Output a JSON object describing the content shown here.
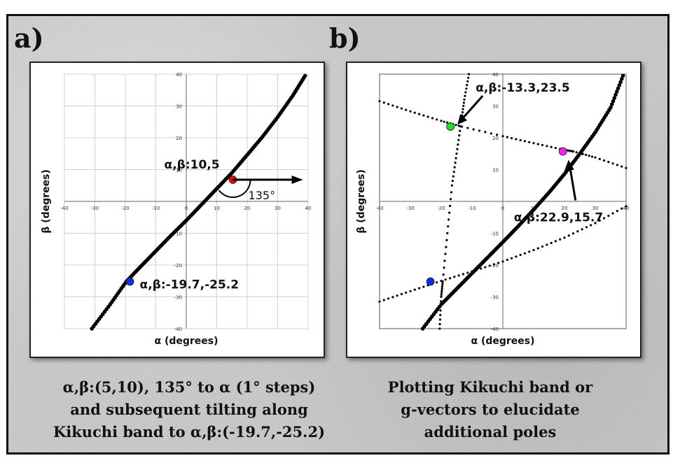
{
  "panels": [
    {
      "letter": "a)",
      "caption": "α,β:(5,10), 135° to α (1° steps)\nand subsequent tilting along\nKikuchi band to α,β:(-19.7,-25.2)"
    },
    {
      "letter": "b)",
      "caption": "Plotting Kikuchi band or\ng-vectors to elucidate\nadditional poles"
    }
  ],
  "colors": {
    "red": "#e01010",
    "blue": "#1030d8",
    "green": "#22dd22",
    "magenta": "#ee22ee",
    "line": "#000000",
    "grid": "#d0d0d0"
  },
  "chart_data": [
    {
      "type": "scatter",
      "xlabel": "α (degrees)",
      "ylabel": "β (degrees)",
      "xlim": [
        -40,
        40
      ],
      "ylim": [
        -40,
        40
      ],
      "ticks": [
        -40,
        -30,
        -20,
        -10,
        0,
        10,
        20,
        30,
        40
      ],
      "grid": true,
      "series": [
        {
          "style": "thick",
          "x": [
            -31,
            -25,
            -19.7,
            -15,
            -10,
            -5,
            0,
            5,
            10,
            15,
            20,
            25,
            30,
            35,
            39
          ],
          "y": [
            -40,
            -32.4,
            -25.2,
            -20.5,
            -15.6,
            -10.7,
            -6,
            -1,
            4,
            9,
            14.6,
            20.3,
            26.5,
            33.3,
            39.5
          ]
        }
      ],
      "points": [
        {
          "x": 15.3,
          "y": 6.8,
          "color": "red",
          "label": "α,β:10,5"
        },
        {
          "x": -18.5,
          "y": -25.2,
          "color": "blue",
          "label": "α,β:-19.7,-25.2"
        }
      ],
      "annotations": [
        {
          "text": "135°"
        }
      ]
    },
    {
      "type": "scatter",
      "xlabel": "α (degrees)",
      "ylabel": "β (degrees)",
      "xlim": [
        -40,
        40
      ],
      "ylim": [
        -40,
        40
      ],
      "ticks": [
        -40,
        -30,
        -20,
        -10,
        0,
        10,
        20,
        30,
        40
      ],
      "grid": false,
      "series": [
        {
          "style": "thick",
          "x": [
            -26,
            -20,
            -15,
            -10,
            -5,
            0,
            5,
            10,
            15,
            20,
            25,
            30,
            35,
            39
          ],
          "y": [
            -40,
            -32.4,
            -27.5,
            -22.6,
            -17.7,
            -12.8,
            -7.8,
            -2.6,
            2.8,
            8.6,
            15,
            21.7,
            29.5,
            39.5
          ]
        },
        {
          "style": "dotted",
          "x": [
            -40,
            -30,
            -20,
            -13.3,
            0,
            10,
            20,
            22.9,
            30,
            40
          ],
          "y": [
            31.5,
            28.3,
            25.3,
            23.5,
            20.5,
            18.3,
            16.2,
            15.7,
            13.8,
            10.5
          ]
        },
        {
          "style": "dotted",
          "x": [
            -20.5,
            -20,
            -19.5,
            -18,
            -16.5,
            -15,
            -13.5,
            -12.5,
            -11
          ],
          "y": [
            -40,
            -30,
            -25.2,
            -10,
            5,
            15,
            25,
            32,
            40
          ]
        },
        {
          "style": "dotted",
          "x": [
            -40,
            -30,
            -20,
            -10,
            0,
            10,
            20,
            30,
            40
          ],
          "y": [
            -31.5,
            -28.2,
            -25,
            -22,
            -18.9,
            -15.3,
            -11.4,
            -6.8,
            -1.5
          ]
        }
      ],
      "points": [
        {
          "x": -17,
          "y": 23.5,
          "color": "green",
          "label": "α,β:-13.3,23.5"
        },
        {
          "x": 19.5,
          "y": 15.7,
          "color": "magenta",
          "label": "α,β:22.9,15.7"
        },
        {
          "x": -23.5,
          "y": -25.2,
          "color": "blue",
          "label": ""
        }
      ],
      "annotations": []
    }
  ]
}
